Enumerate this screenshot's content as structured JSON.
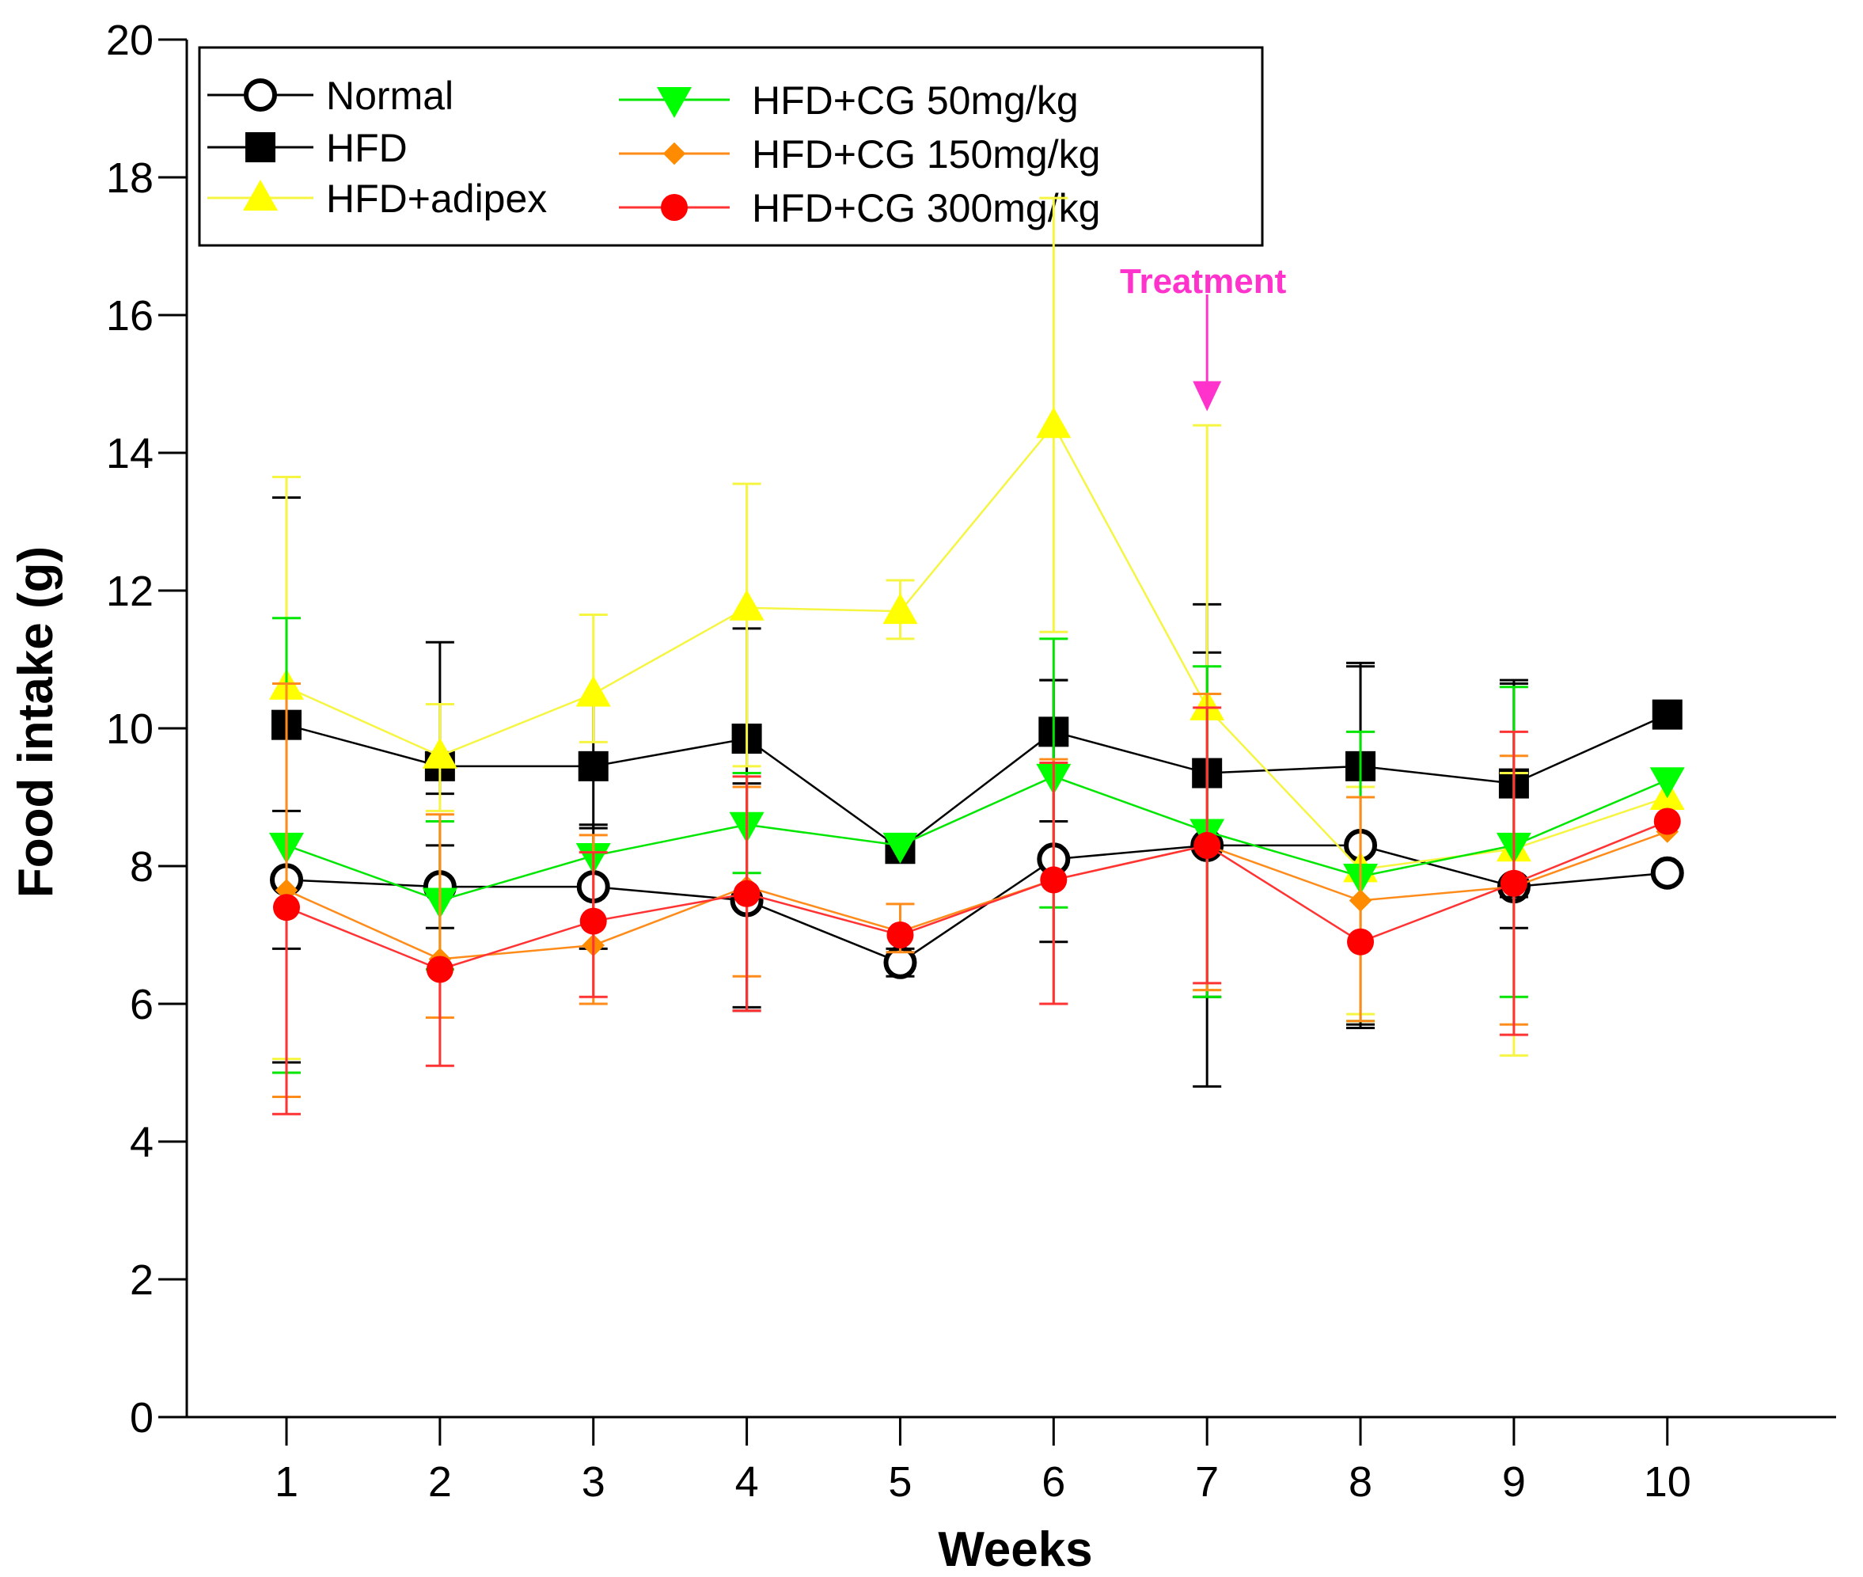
{
  "chart_data": {
    "type": "line",
    "title": "",
    "xlabel": "Weeks",
    "ylabel": "Food intake (g)",
    "x": [
      1,
      2,
      3,
      4,
      5,
      6,
      7,
      8,
      9,
      10
    ],
    "x_tick_labels": [
      "1",
      "2",
      "3",
      "4",
      "5",
      "6",
      "7",
      "8",
      "9",
      "10"
    ],
    "xlim": [
      0.35,
      11.1
    ],
    "ylim": [
      0,
      20
    ],
    "y_ticks": [
      0,
      2,
      4,
      6,
      8,
      10,
      12,
      14,
      16,
      18,
      20
    ],
    "y_tick_labels": [
      "0",
      "2",
      "4",
      "6",
      "8",
      "10",
      "12",
      "14",
      "16",
      "18",
      "20"
    ],
    "grid": false,
    "legend_position": "top-left",
    "series": [
      {
        "name": "Normal",
        "marker": "open-circle",
        "color": "#000000",
        "marker_color": "#000000",
        "values": [
          7.8,
          7.7,
          7.7,
          7.5,
          6.6,
          8.1,
          8.3,
          8.3,
          7.7,
          7.9
        ],
        "err_upper": [
          1.0,
          0.6,
          0.9,
          1.7,
          0.2,
          2.6,
          2.8,
          2.6,
          3.0,
          0
        ],
        "err_lower": [
          1.0,
          0.6,
          0.9,
          1.6,
          0.2,
          1.2,
          2.2,
          2.6,
          0.6,
          0
        ]
      },
      {
        "name": "HFD",
        "marker": "square",
        "color": "#000000",
        "marker_color": "#000000",
        "values": [
          10.05,
          9.45,
          9.45,
          9.85,
          8.25,
          9.95,
          9.35,
          9.45,
          9.2,
          10.2
        ],
        "err_upper": [
          3.3,
          1.8,
          0.9,
          1.6,
          0,
          0.75,
          2.45,
          1.5,
          1.45,
          0
        ],
        "err_lower": [
          4.9,
          0.4,
          0.9,
          3.9,
          0,
          1.3,
          4.55,
          3.8,
          1.65,
          0
        ]
      },
      {
        "name": "HFD+adipex",
        "marker": "triangle-up",
        "color": "#f5f542",
        "marker_color": "#ffff00",
        "values": [
          10.6,
          9.6,
          10.5,
          11.75,
          11.7,
          14.4,
          10.3,
          7.95,
          8.25,
          9.0
        ],
        "err_upper": [
          3.05,
          0.75,
          1.15,
          1.8,
          0.45,
          3.3,
          4.1,
          1.2,
          1.1,
          0
        ],
        "err_lower": [
          5.4,
          0.8,
          0.7,
          2.3,
          0.4,
          3.0,
          4.1,
          2.1,
          3.0,
          0
        ]
      },
      {
        "name": "HFD+CG 50mg/kg",
        "marker": "triangle-down",
        "color": "#00e600",
        "marker_color": "#00ff00",
        "values": [
          8.3,
          7.5,
          8.15,
          8.6,
          8.3,
          9.3,
          8.5,
          7.85,
          8.3,
          9.25
        ],
        "err_upper": [
          3.3,
          1.15,
          0,
          0.75,
          0,
          2.0,
          2.4,
          2.1,
          2.3,
          0
        ],
        "err_lower": [
          3.3,
          1.0,
          0,
          0.7,
          0,
          1.9,
          2.4,
          2.1,
          2.2,
          0
        ]
      },
      {
        "name": "HFD+CG 150mg/kg",
        "marker": "diamond",
        "color": "#ff8c1a",
        "marker_color": "#ff8c00",
        "values": [
          7.65,
          6.65,
          6.85,
          7.7,
          7.05,
          7.8,
          8.3,
          7.5,
          7.7,
          8.5
        ],
        "err_upper": [
          3.0,
          2.1,
          1.6,
          1.45,
          0.4,
          1.75,
          2.2,
          1.5,
          1.9,
          0
        ],
        "err_lower": [
          3.0,
          0.85,
          0.85,
          1.3,
          0.3,
          1.8,
          2.1,
          1.75,
          2.0,
          0
        ]
      },
      {
        "name": "HFD+CG 300mg/kg",
        "marker": "circle",
        "color": "#ff3333",
        "marker_color": "#ff0000",
        "values": [
          7.4,
          6.5,
          7.2,
          7.6,
          7.0,
          7.8,
          8.3,
          6.9,
          7.75,
          8.65
        ],
        "err_upper": [
          0,
          0,
          1.0,
          1.7,
          0,
          1.7,
          2.0,
          0,
          2.2,
          0
        ],
        "err_lower": [
          3.0,
          1.4,
          1.1,
          1.7,
          0,
          1.8,
          2.0,
          0,
          2.2,
          0
        ]
      }
    ],
    "annotations": [
      {
        "text": "Treatment",
        "x": 7,
        "y_arrow_start": 16.3,
        "y_arrow_end": 14.65,
        "color": "#ff33cc"
      }
    ]
  }
}
